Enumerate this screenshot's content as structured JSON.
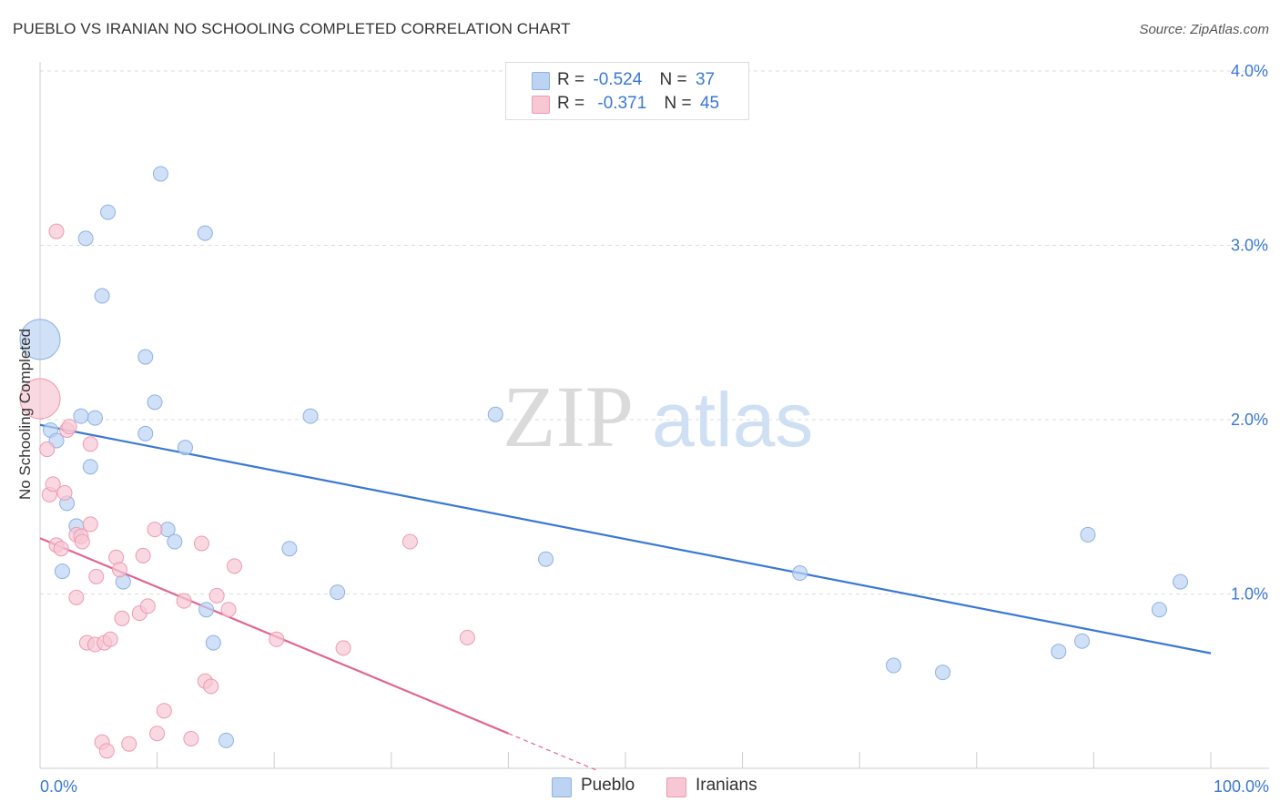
{
  "header": {
    "title": "PUEBLO VS IRANIAN NO SCHOOLING COMPLETED CORRELATION CHART",
    "source": "Source: ZipAtlas.com"
  },
  "watermark": {
    "zip": "ZIP",
    "atlas": "atlas"
  },
  "stats_legend": {
    "r_label": "R =",
    "n_label": "N =",
    "rows": [
      {
        "series": "Pueblo",
        "r": "-0.524",
        "n": "37",
        "color": "#a9c8f2"
      },
      {
        "series": "Iranians",
        "r": "-0.371",
        "n": "45",
        "color": "#f5b8c8"
      }
    ]
  },
  "colors": {
    "pueblo_fill": "#bcd3f2",
    "pueblo_stroke": "#8db2e6",
    "pueblo_line": "#3a78d4",
    "iranians_fill": "#f7c7d4",
    "iranians_stroke": "#ee9ab2",
    "iranians_line": "#e16591",
    "axis_text": "#3a78d4"
  },
  "chart_data": {
    "type": "scatter",
    "title": "PUEBLO VS IRANIAN NO SCHOOLING COMPLETED CORRELATION CHART",
    "xlabel": "",
    "ylabel": "No Schooling Completed",
    "xlim": [
      0,
      100
    ],
    "ylim": [
      0,
      4.0
    ],
    "x_tick_labels": [
      "0.0%",
      "100.0%"
    ],
    "y_ticks": [
      1.0,
      2.0,
      3.0,
      4.0
    ],
    "y_tick_labels": [
      "1.0%",
      "2.0%",
      "3.0%",
      "4.0%"
    ],
    "grid": true,
    "legend_placement": "bottom-center",
    "series": [
      {
        "name": "Pueblo",
        "points": [
          {
            "x": 0.0,
            "y": 2.46,
            "big": true
          },
          {
            "x": 0.9,
            "y": 1.94
          },
          {
            "x": 1.4,
            "y": 1.88
          },
          {
            "x": 1.9,
            "y": 1.13
          },
          {
            "x": 2.3,
            "y": 1.52
          },
          {
            "x": 3.1,
            "y": 1.39
          },
          {
            "x": 3.5,
            "y": 2.02
          },
          {
            "x": 3.9,
            "y": 3.04
          },
          {
            "x": 4.3,
            "y": 1.73
          },
          {
            "x": 4.7,
            "y": 2.01
          },
          {
            "x": 5.3,
            "y": 2.71
          },
          {
            "x": 5.8,
            "y": 3.19
          },
          {
            "x": 7.1,
            "y": 1.07
          },
          {
            "x": 9.0,
            "y": 2.36
          },
          {
            "x": 9.0,
            "y": 1.92
          },
          {
            "x": 9.8,
            "y": 2.1
          },
          {
            "x": 10.3,
            "y": 3.41
          },
          {
            "x": 10.9,
            "y": 1.37
          },
          {
            "x": 11.5,
            "y": 1.3
          },
          {
            "x": 12.4,
            "y": 1.84
          },
          {
            "x": 14.1,
            "y": 3.07
          },
          {
            "x": 14.2,
            "y": 0.91
          },
          {
            "x": 14.8,
            "y": 0.72
          },
          {
            "x": 15.9,
            "y": 0.16
          },
          {
            "x": 21.3,
            "y": 1.26
          },
          {
            "x": 23.1,
            "y": 2.02
          },
          {
            "x": 25.4,
            "y": 1.01
          },
          {
            "x": 38.9,
            "y": 2.03
          },
          {
            "x": 43.2,
            "y": 1.2
          },
          {
            "x": 64.9,
            "y": 1.12
          },
          {
            "x": 72.9,
            "y": 0.59
          },
          {
            "x": 77.1,
            "y": 0.55
          },
          {
            "x": 87.0,
            "y": 0.67
          },
          {
            "x": 89.0,
            "y": 0.73
          },
          {
            "x": 89.5,
            "y": 1.34
          },
          {
            "x": 95.6,
            "y": 0.91
          },
          {
            "x": 97.4,
            "y": 1.07
          }
        ],
        "trend": {
          "x1": 0.0,
          "y1": 1.97,
          "x2": 100.0,
          "y2": 0.66
        }
      },
      {
        "name": "Iranians",
        "points": [
          {
            "x": 0.0,
            "y": 2.12,
            "big": true
          },
          {
            "x": 0.6,
            "y": 1.83
          },
          {
            "x": 0.8,
            "y": 1.57
          },
          {
            "x": 1.1,
            "y": 1.63
          },
          {
            "x": 1.4,
            "y": 3.08
          },
          {
            "x": 1.4,
            "y": 1.28
          },
          {
            "x": 1.8,
            "y": 1.26
          },
          {
            "x": 2.1,
            "y": 1.58
          },
          {
            "x": 2.3,
            "y": 1.94
          },
          {
            "x": 2.5,
            "y": 1.96
          },
          {
            "x": 3.1,
            "y": 1.34
          },
          {
            "x": 3.1,
            "y": 0.98
          },
          {
            "x": 3.5,
            "y": 1.33
          },
          {
            "x": 3.6,
            "y": 1.3
          },
          {
            "x": 4.0,
            "y": 0.72
          },
          {
            "x": 4.3,
            "y": 1.4
          },
          {
            "x": 4.3,
            "y": 1.86
          },
          {
            "x": 4.7,
            "y": 0.71
          },
          {
            "x": 4.8,
            "y": 1.1
          },
          {
            "x": 5.3,
            "y": 0.15
          },
          {
            "x": 5.5,
            "y": 0.72
          },
          {
            "x": 5.7,
            "y": 0.1
          },
          {
            "x": 6.0,
            "y": 0.74
          },
          {
            "x": 6.5,
            "y": 1.21
          },
          {
            "x": 6.8,
            "y": 1.14
          },
          {
            "x": 7.0,
            "y": 0.86
          },
          {
            "x": 7.6,
            "y": 0.14
          },
          {
            "x": 8.5,
            "y": 0.89
          },
          {
            "x": 8.8,
            "y": 1.22
          },
          {
            "x": 9.2,
            "y": 0.93
          },
          {
            "x": 9.8,
            "y": 1.37
          },
          {
            "x": 10.0,
            "y": 0.2
          },
          {
            "x": 10.6,
            "y": 0.33
          },
          {
            "x": 12.3,
            "y": 0.96
          },
          {
            "x": 12.9,
            "y": 0.17
          },
          {
            "x": 13.8,
            "y": 1.29
          },
          {
            "x": 14.1,
            "y": 0.5
          },
          {
            "x": 14.6,
            "y": 0.47
          },
          {
            "x": 15.1,
            "y": 0.99
          },
          {
            "x": 16.1,
            "y": 0.91
          },
          {
            "x": 16.6,
            "y": 1.16
          },
          {
            "x": 20.2,
            "y": 0.74
          },
          {
            "x": 25.9,
            "y": 0.69
          },
          {
            "x": 31.6,
            "y": 1.3
          },
          {
            "x": 36.5,
            "y": 0.75
          }
        ],
        "trend": {
          "x1": 0.0,
          "y1": 1.32,
          "x2": 40.0,
          "y2": 0.2
        },
        "trend_dashed": {
          "x1": 40.0,
          "y1": 0.2,
          "x2": 47.5,
          "y2": -0.01
        }
      }
    ]
  }
}
